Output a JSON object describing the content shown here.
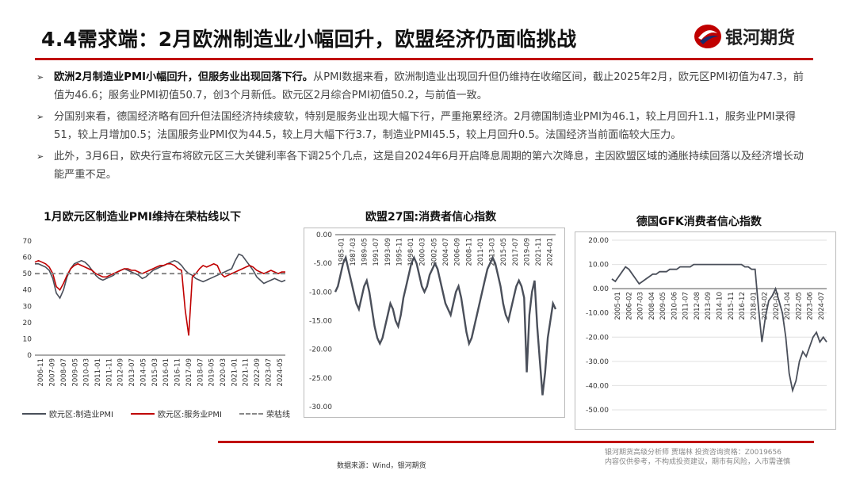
{
  "header": {
    "title": "4.4需求端：2月欧洲制造业小幅回升，欧盟经济仍面临挑战",
    "brand": "银河期货",
    "brand_color": "#c00000"
  },
  "bullets": [
    {
      "bold": "欧洲2月制造业PMI小幅回升，但服务业出现回落下行。",
      "text": "从PMI数据来看，欧洲制造业出现回升但仍维持在收缩区间，截止2025年2月，欧元区PMI初值为47.3，前值为46.6；服务业PMI初值50.7，创3个月新低。欧元区2月综合PMI初值50.2，与前值一致。"
    },
    {
      "bold": "",
      "text": "分国别来看，德国经济略有回升但法国经济持续疲软，特别是服务业出现大幅下行，严重拖累经济。2月德国制造业PMI为46.1，较上月回升1.1，服务业PMI录得51，较上月增加0.5；法国服务业PMI仅为44.5，较上月大幅下行3.7，制造业PMI45.5，较上月回升0.5。法国经济当前面临较大压力。"
    },
    {
      "bold": "",
      "text": "此外，3月6日，欧央行宣布将欧元区三大关键利率各下调25个几点，这是自2024年6月开启降息周期的第六次降息，主因欧盟区域的通胀持续回落以及经济增长动能严重不足。"
    }
  ],
  "chart_data": [
    {
      "type": "line",
      "title": "1月欧元区制造业PMI维持在荣枯线以下",
      "ylim": [
        0,
        70
      ],
      "yticks": [
        "0",
        "10",
        "20",
        "30",
        "40",
        "50",
        "60",
        "70"
      ],
      "xticks": [
        "2006-11",
        "2007-09",
        "2008-07",
        "2009-05",
        "2010-03",
        "2011-01",
        "2011-11",
        "2012-09",
        "2013-07",
        "2014-05",
        "2015-03",
        "2016-01",
        "2016-11",
        "2017-09",
        "2018-07",
        "2019-05",
        "2020-03",
        "2021-01",
        "2021-11",
        "2022-09",
        "2023-07",
        "2024-05"
      ],
      "series": [
        {
          "name": "欧元区:制造业PMI",
          "color": "#4a4f5a",
          "values": [
            56,
            56,
            55,
            54,
            52,
            47,
            38,
            35,
            40,
            48,
            53,
            56,
            57,
            58,
            57,
            55,
            52,
            49,
            47,
            46,
            47,
            48,
            49,
            51,
            52,
            53,
            52,
            51,
            50,
            49,
            47,
            48,
            50,
            52,
            53,
            54,
            55,
            56,
            57,
            58,
            57,
            55,
            52,
            50,
            49,
            47,
            46,
            45,
            46,
            47,
            48,
            49,
            50,
            51,
            52,
            53,
            58,
            62,
            61,
            58,
            55,
            52,
            48,
            46,
            44,
            45,
            46,
            47,
            46,
            45,
            46
          ]
        },
        {
          "name": "欧元区:服务业PMI",
          "color": "#c00000",
          "values": [
            57,
            58,
            57,
            56,
            54,
            50,
            42,
            40,
            44,
            49,
            53,
            55,
            56,
            55,
            54,
            53,
            52,
            50,
            49,
            48,
            48,
            49,
            50,
            51,
            52,
            53,
            53,
            52,
            52,
            51,
            50,
            51,
            52,
            53,
            54,
            55,
            55,
            56,
            56,
            55,
            53,
            52,
            28,
            12,
            48,
            50,
            53,
            55,
            54,
            55,
            56,
            55,
            50,
            48,
            49,
            50,
            51,
            52,
            53,
            54,
            55,
            54,
            52,
            51,
            50,
            51,
            52,
            51,
            50,
            51,
            51
          ]
        },
        {
          "name": "荣枯线",
          "color": "#888888",
          "values": [
            50,
            50
          ]
        }
      ]
    },
    {
      "type": "line",
      "title": "欧盟27国:消费者信心指数",
      "ylim": [
        -30,
        0
      ],
      "yticks": [
        "0.00",
        "-5.00",
        "-10.00",
        "-15.00",
        "-20.00",
        "-25.00",
        "-30.00"
      ],
      "xticks": [
        "1985-01",
        "1987-03",
        "1989-05",
        "1991-07",
        "1993-09",
        "1995-11",
        "1998-01",
        "2000-03",
        "2002-05",
        "2004-07",
        "2006-09",
        "2008-11",
        "2011-01",
        "2013-03",
        "2015-05",
        "2017-07",
        "2019-09",
        "2021-11",
        "2024-01"
      ],
      "series": [
        {
          "name": "消费者信心指数",
          "color": "#4a4f5a",
          "values": [
            -10,
            -9,
            -7,
            -5,
            -4,
            -6,
            -8,
            -10,
            -12,
            -13,
            -11,
            -9,
            -8,
            -10,
            -13,
            -16,
            -18,
            -19,
            -18,
            -16,
            -14,
            -12,
            -13,
            -15,
            -16,
            -14,
            -11,
            -9,
            -7,
            -5,
            -4,
            -5,
            -7,
            -9,
            -10,
            -9,
            -7,
            -6,
            -5,
            -6,
            -8,
            -10,
            -12,
            -13,
            -14,
            -12,
            -10,
            -9,
            -11,
            -14,
            -17,
            -19,
            -18,
            -16,
            -14,
            -12,
            -10,
            -8,
            -6,
            -5,
            -4,
            -5,
            -7,
            -9,
            -12,
            -14,
            -15,
            -13,
            -11,
            -9,
            -8,
            -9,
            -11,
            -24,
            -14,
            -10,
            -8,
            -16,
            -22,
            -28,
            -24,
            -18,
            -15,
            -12,
            -13
          ]
        }
      ]
    },
    {
      "type": "line",
      "title": "德国GFK消费者信心指数",
      "ylim": [
        -50,
        20
      ],
      "yticks": [
        "20.00",
        "10.00",
        "0.00",
        "-10.00",
        "-20.00",
        "-30.00",
        "-40.00",
        "-50.00"
      ],
      "xticks": [
        "2005-01",
        "2006-02",
        "2007-03",
        "2008-04",
        "2009-05",
        "2010-06",
        "2011-07",
        "2012-08",
        "2013-09",
        "2014-10",
        "2015-11",
        "2016-12",
        "2018-01",
        "2019-02",
        "2020-03",
        "2021-04",
        "2022-05",
        "2023-06",
        "2024-07"
      ],
      "series": [
        {
          "name": "GFK消费者信心指数",
          "color": "#4a4f5a",
          "values": [
            4,
            3,
            5,
            7,
            9,
            8,
            6,
            4,
            2,
            3,
            4,
            5,
            6,
            6,
            7,
            7,
            7,
            8,
            8,
            8,
            9,
            9,
            9,
            9,
            10,
            10,
            10,
            10,
            10,
            10,
            10,
            10,
            10,
            10,
            10,
            10,
            10,
            10,
            10,
            9,
            9,
            8,
            8,
            -8,
            -22,
            -12,
            -5,
            -3,
            0,
            -5,
            -10,
            -20,
            -35,
            -42,
            -38,
            -30,
            -26,
            -28,
            -24,
            -20,
            -18,
            -22,
            -20,
            -22
          ]
        }
      ]
    }
  ],
  "source": "数据来源：Wind，银河期货",
  "disclaimer": [
    "银河期货高级分析师 贾瑞林 投资咨询资格：Z0019656",
    "内容仅供参考，不构成投资建议，期市有风险，入市需谨慎"
  ]
}
